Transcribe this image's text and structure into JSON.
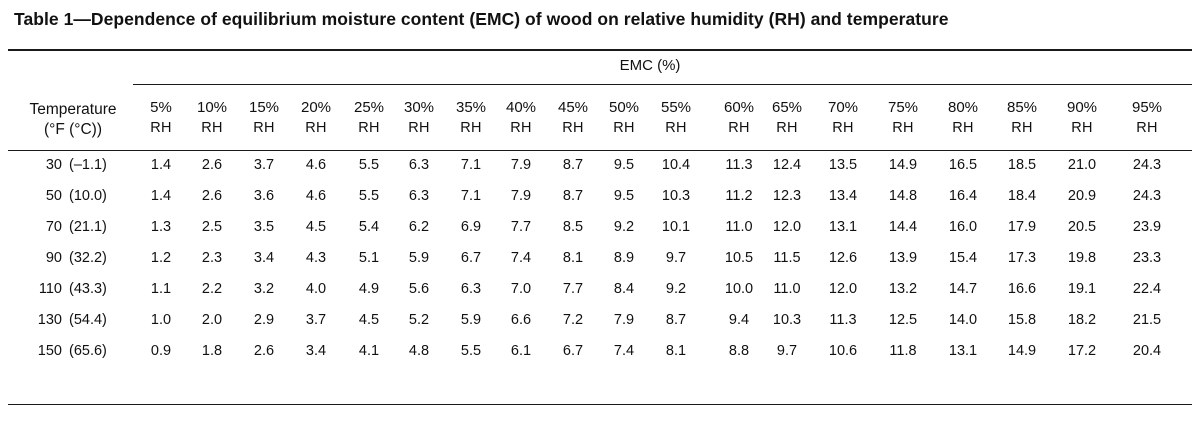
{
  "title": "Table 1—Dependence of equilibrium moisture content (EMC) of wood on relative humidity (RH) and temperature",
  "stub_header": {
    "line1": "Temperature",
    "line2": "(°F (°C))"
  },
  "spanner": "EMC (%)",
  "columns": [
    {
      "pct": "5%",
      "unit": "RH"
    },
    {
      "pct": "10%",
      "unit": "RH"
    },
    {
      "pct": "15%",
      "unit": "RH"
    },
    {
      "pct": "20%",
      "unit": "RH"
    },
    {
      "pct": "25%",
      "unit": "RH"
    },
    {
      "pct": "30%",
      "unit": "RH"
    },
    {
      "pct": "35%",
      "unit": "RH"
    },
    {
      "pct": "40%",
      "unit": "RH"
    },
    {
      "pct": "45%",
      "unit": "RH"
    },
    {
      "pct": "50%",
      "unit": "RH"
    },
    {
      "pct": "55%",
      "unit": "RH"
    },
    {
      "pct": "60%",
      "unit": "RH"
    },
    {
      "pct": "65%",
      "unit": "RH"
    },
    {
      "pct": "70%",
      "unit": "RH"
    },
    {
      "pct": "75%",
      "unit": "RH"
    },
    {
      "pct": "80%",
      "unit": "RH"
    },
    {
      "pct": "85%",
      "unit": "RH"
    },
    {
      "pct": "90%",
      "unit": "RH"
    },
    {
      "pct": "95%",
      "unit": "RH"
    }
  ],
  "rows": [
    {
      "temp_f": "30",
      "temp_c": "(–1.1)",
      "values": [
        "1.4",
        "2.6",
        "3.7",
        "4.6",
        "5.5",
        "6.3",
        "7.1",
        "7.9",
        "8.7",
        "9.5",
        "10.4",
        "11.3",
        "12.4",
        "13.5",
        "14.9",
        "16.5",
        "18.5",
        "21.0",
        "24.3"
      ]
    },
    {
      "temp_f": "50",
      "temp_c": "(10.0)",
      "values": [
        "1.4",
        "2.6",
        "3.6",
        "4.6",
        "5.5",
        "6.3",
        "7.1",
        "7.9",
        "8.7",
        "9.5",
        "10.3",
        "11.2",
        "12.3",
        "13.4",
        "14.8",
        "16.4",
        "18.4",
        "20.9",
        "24.3"
      ]
    },
    {
      "temp_f": "70",
      "temp_c": "(21.1)",
      "values": [
        "1.3",
        "2.5",
        "3.5",
        "4.5",
        "5.4",
        "6.2",
        "6.9",
        "7.7",
        "8.5",
        "9.2",
        "10.1",
        "11.0",
        "12.0",
        "13.1",
        "14.4",
        "16.0",
        "17.9",
        "20.5",
        "23.9"
      ]
    },
    {
      "temp_f": "90",
      "temp_c": "(32.2)",
      "values": [
        "1.2",
        "2.3",
        "3.4",
        "4.3",
        "5.1",
        "5.9",
        "6.7",
        "7.4",
        "8.1",
        "8.9",
        "9.7",
        "10.5",
        "11.5",
        "12.6",
        "13.9",
        "15.4",
        "17.3",
        "19.8",
        "23.3"
      ]
    },
    {
      "temp_f": "110",
      "temp_c": "(43.3)",
      "values": [
        "1.1",
        "2.2",
        "3.2",
        "4.0",
        "4.9",
        "5.6",
        "6.3",
        "7.0",
        "7.7",
        "8.4",
        "9.2",
        "10.0",
        "11.0",
        "12.0",
        "13.2",
        "14.7",
        "16.6",
        "19.1",
        "22.4"
      ]
    },
    {
      "temp_f": "130",
      "temp_c": "(54.4)",
      "values": [
        "1.0",
        "2.0",
        "2.9",
        "3.7",
        "4.5",
        "5.2",
        "5.9",
        "6.6",
        "7.2",
        "7.9",
        "8.7",
        "9.4",
        "10.3",
        "11.3",
        "12.5",
        "14.0",
        "15.8",
        "18.2",
        "21.5"
      ]
    },
    {
      "temp_f": "150",
      "temp_c": "(65.6)",
      "values": [
        "0.9",
        "1.8",
        "2.6",
        "3.4",
        "4.1",
        "4.8",
        "5.5",
        "6.1",
        "6.7",
        "7.4",
        "8.1",
        "8.8",
        "9.7",
        "10.6",
        "11.8",
        "13.1",
        "14.9",
        "17.2",
        "20.4"
      ]
    }
  ]
}
